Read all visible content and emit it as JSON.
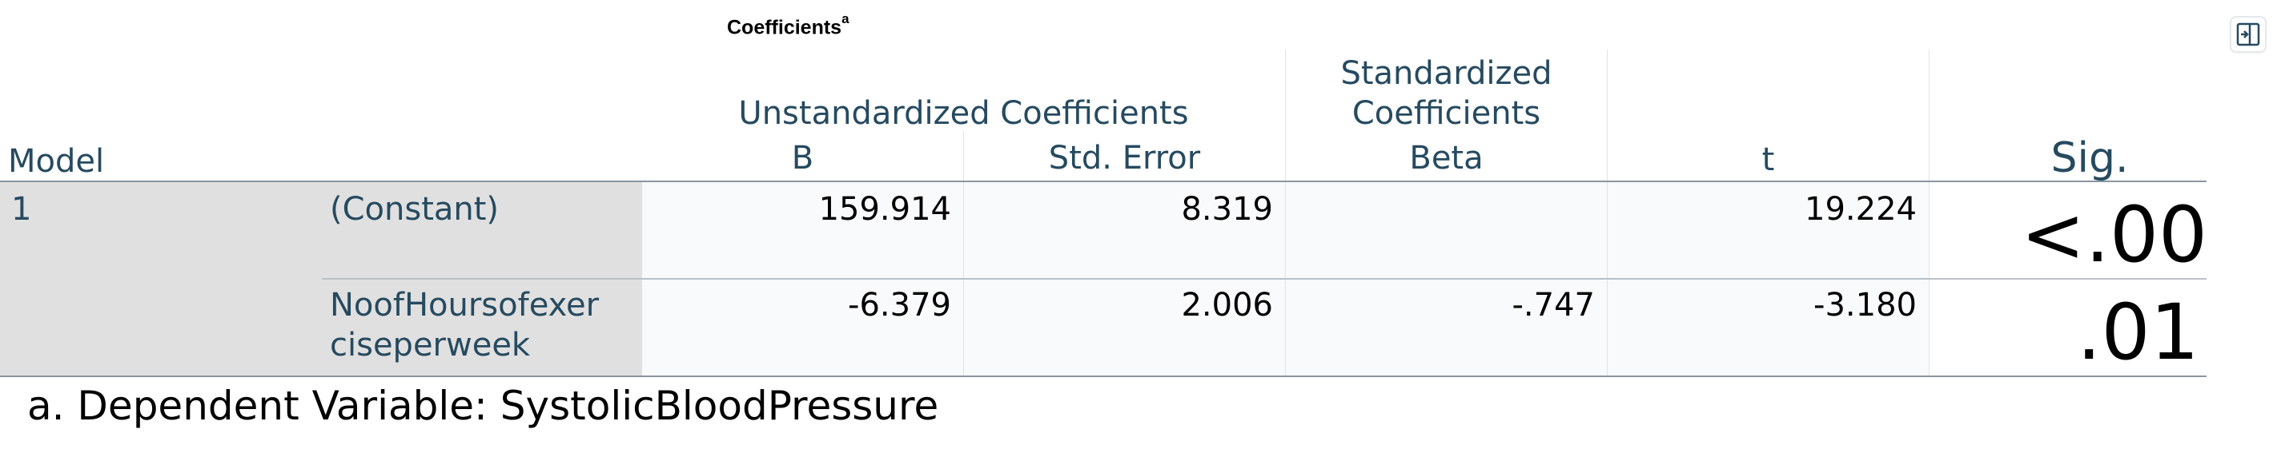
{
  "table": {
    "title": "Coefficients",
    "title_superscript": "a",
    "headers": {
      "model": "Model",
      "unstandardized_group": "Unstandardized Coefficients",
      "b": "B",
      "std_error": "Std. Error",
      "standardized_group_line1": "Standardized",
      "standardized_group_line2": "Coefficients",
      "beta": "Beta",
      "t": "t",
      "sig": "Sig."
    },
    "rows": [
      {
        "model": "1",
        "variable": "(Constant)",
        "b": "159.914",
        "std_error": "8.319",
        "beta": "",
        "t": "19.224",
        "sig": "<.00"
      },
      {
        "model": "",
        "variable_line1": "NoofHoursofexer",
        "variable_line2": "ciseperweek",
        "b": "-6.379",
        "std_error": "2.006",
        "beta": "-.747",
        "t": "-3.180",
        "sig": ".01"
      }
    ],
    "footnote": "a. Dependent Variable: SystolicBloodPressure"
  },
  "icons": {
    "corner_button": "expand-panel-icon"
  },
  "colors": {
    "header_text": "#264a60",
    "label_bg": "#e0e0e0",
    "data_bg": "#f9fafb"
  }
}
